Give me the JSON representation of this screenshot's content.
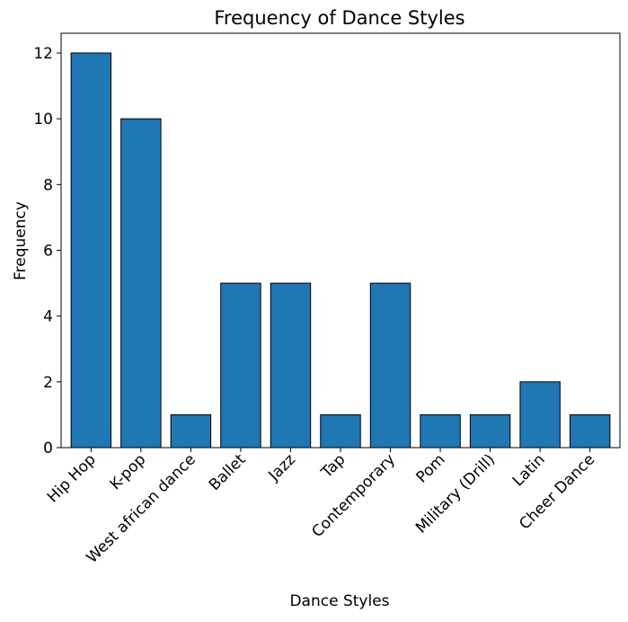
{
  "chart_data": {
    "type": "bar",
    "title": "Frequency of Dance Styles",
    "xlabel": "Dance Styles",
    "ylabel": "Frequency",
    "categories": [
      "Hip Hop",
      "K-pop",
      "West african dance",
      "Ballet",
      "Jazz",
      "Tap",
      "Contemporary",
      "Pom",
      "Military (Drill)",
      "Latin",
      "Cheer Dance"
    ],
    "values": [
      12,
      10,
      1,
      5,
      5,
      1,
      5,
      1,
      1,
      2,
      1
    ],
    "ylim": [
      0,
      12.6
    ],
    "yticks": [
      0,
      2,
      4,
      6,
      8,
      10,
      12
    ],
    "grid": false,
    "bar_color": "#1f77b4",
    "bar_edge_color": "#000000",
    "x_tick_rotation_deg": 45
  }
}
